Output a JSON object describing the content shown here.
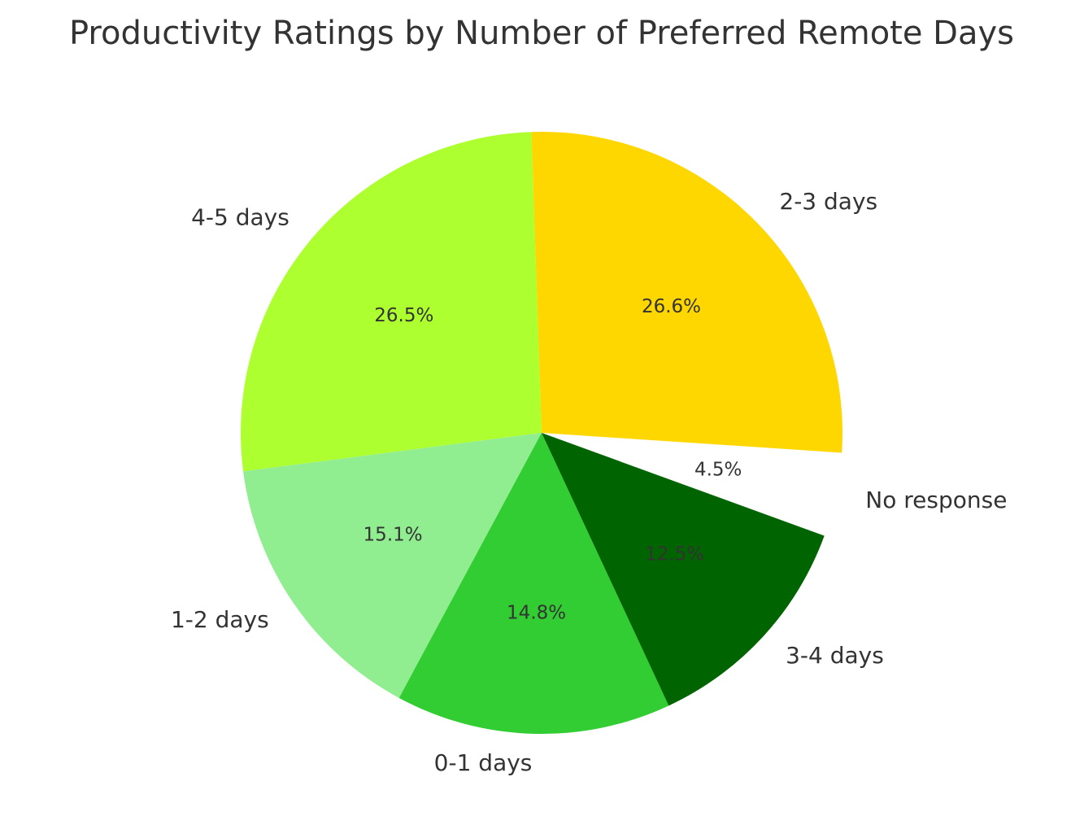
{
  "chart_data": {
    "type": "pie",
    "title": "Productivity Ratings by Number of Preferred Remote Days",
    "categories": [
      "No response",
      "2-3 days",
      "4-5 days",
      "1-2 days",
      "0-1 days",
      "3-4 days"
    ],
    "values": [
      4.5,
      26.6,
      26.5,
      15.1,
      14.8,
      12.5
    ],
    "value_labels": [
      "4.5%",
      "26.6%",
      "26.5%",
      "15.1%",
      "14.8%",
      "12.5%"
    ],
    "colors": [
      "#ffffff",
      "#ffd700",
      "#adff2f",
      "#90ee90",
      "#32cd32",
      "#006400"
    ],
    "start_angle_deg": -20,
    "direction": "counterclockwise",
    "legend": "none"
  }
}
